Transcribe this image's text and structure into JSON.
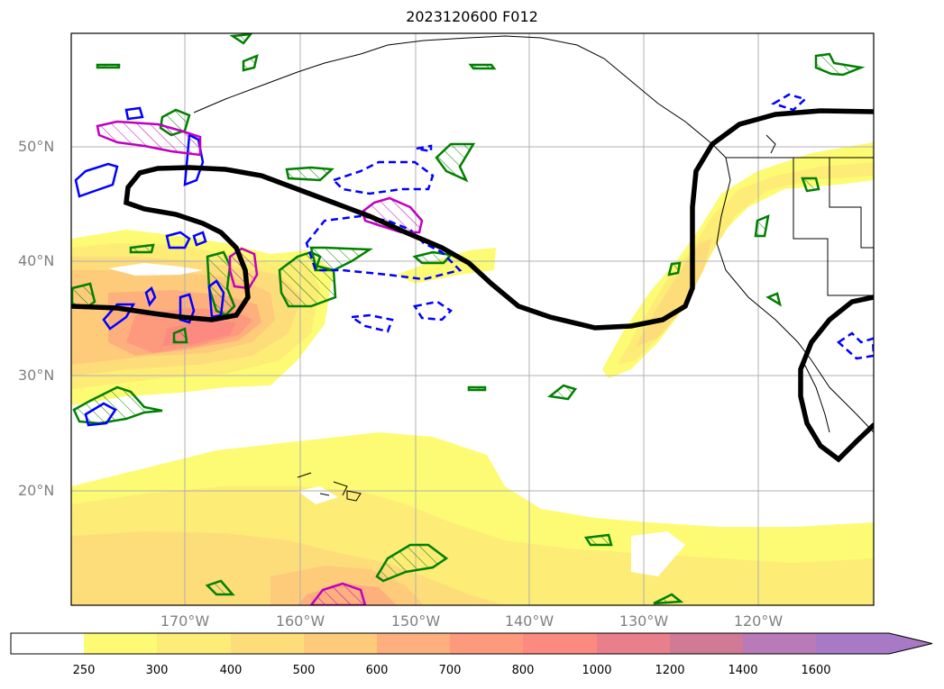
{
  "title": "2023120600 F012",
  "map": {
    "lat_labels": [
      "50°N",
      "40°N",
      "30°N",
      "20°N"
    ],
    "lon_labels": [
      "170°W",
      "160°W",
      "150°W",
      "140°W",
      "130°W",
      "120°W"
    ],
    "fill_variable_levels": [
      250,
      300,
      400,
      500,
      600,
      700,
      800,
      1000,
      1200,
      1400,
      1600
    ],
    "fill_colors": [
      "#ffffff",
      "#fdfb73",
      "#fdec76",
      "#fddd7a",
      "#fdcb7a",
      "#fdb07d",
      "#fd9a7d",
      "#fc8a80",
      "#ea7f8c",
      "#d07a96",
      "#b87ab8",
      "#a87ac6"
    ],
    "contour_colors": {
      "black": "#000000",
      "green": "#008000",
      "blue": "#0000ff",
      "magenta": "#c000c0"
    }
  },
  "colorbar": {
    "labels": [
      "250",
      "300",
      "400",
      "500",
      "600",
      "700",
      "800",
      "1000",
      "1200",
      "1400",
      "1600"
    ],
    "extend": "max"
  }
}
